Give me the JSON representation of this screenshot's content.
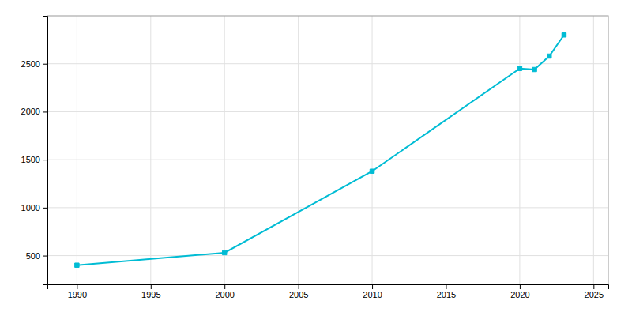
{
  "chart_data": {
    "type": "line",
    "x": [
      1990,
      2000,
      2010,
      2020,
      2021,
      2022,
      2023
    ],
    "values": [
      400,
      530,
      1380,
      2450,
      2440,
      2580,
      2800
    ],
    "color": "#00bcd4",
    "marker": "square",
    "xlim": [
      1988,
      2026
    ],
    "ylim": [
      200,
      3000
    ],
    "xticks": [
      1990,
      1995,
      2000,
      2005,
      2010,
      2015,
      2020,
      2025
    ],
    "yticks": [
      500,
      1000,
      1500,
      2000,
      2500
    ],
    "grid": true
  }
}
